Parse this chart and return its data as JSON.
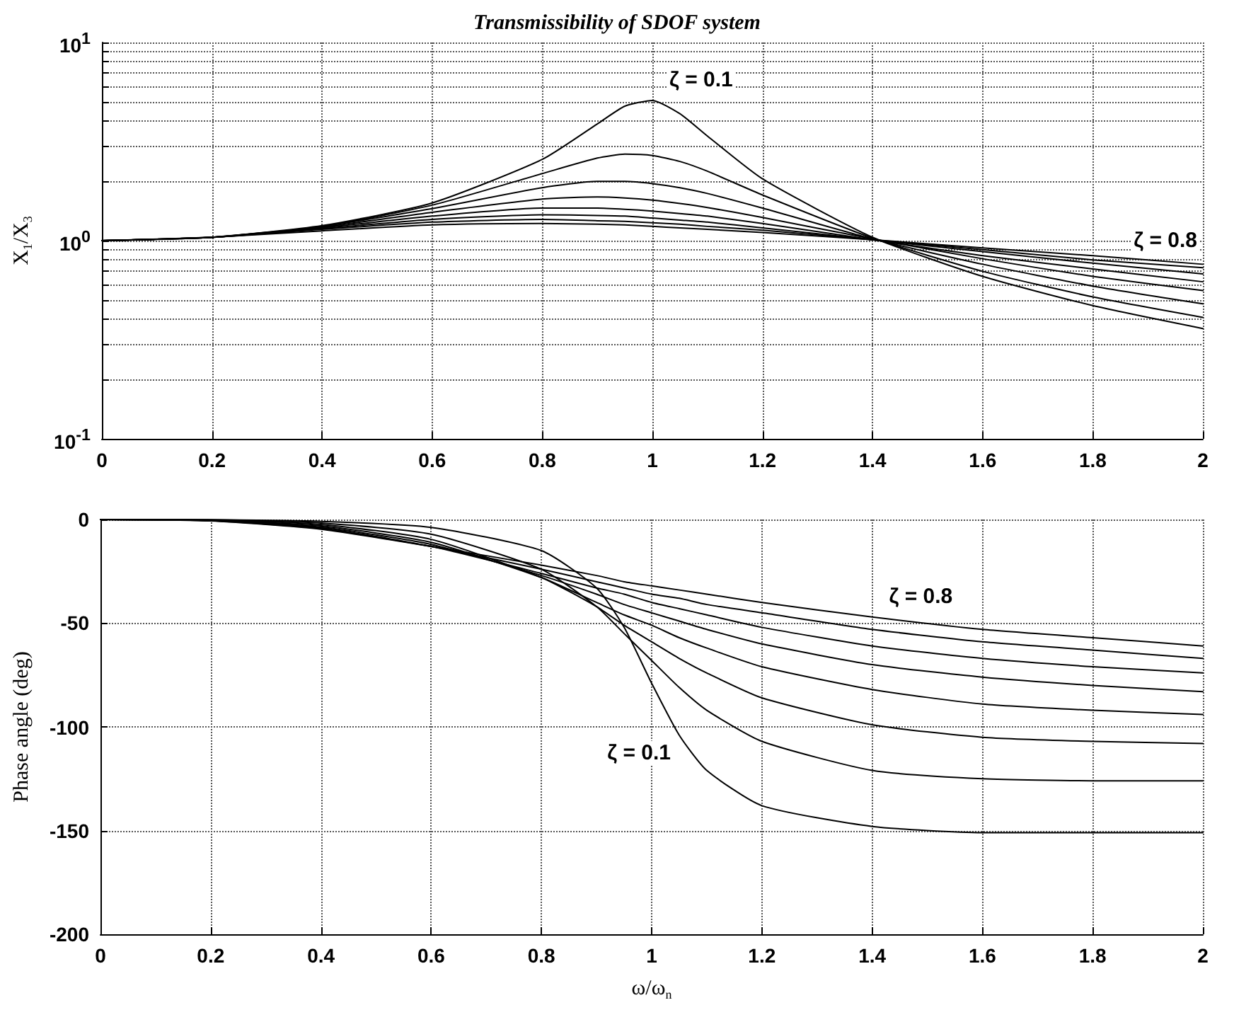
{
  "chart_data": [
    {
      "type": "line",
      "title": "Transmissibility of SDOF system",
      "ylabel": "X$_{1}$/X$_{3}$",
      "log": "y",
      "grid": true,
      "marker": "none",
      "line_style": "solid",
      "x": [
        0,
        0.2,
        0.4,
        0.6,
        0.8,
        0.9,
        0.95,
        1,
        1.05,
        1.1,
        1.2,
        1.4,
        1.6,
        1.8,
        2
      ],
      "xlim": [
        0,
        2
      ],
      "xticks": [
        0,
        0.2,
        0.4,
        0.6,
        0.8,
        1,
        1.2,
        1.4,
        1.6,
        1.8,
        2
      ],
      "ylim": [
        0.1,
        10
      ],
      "yticks": [
        {
          "value": 0.1,
          "label": "10$^{-1}$"
        },
        {
          "value": 0.2,
          "label": null
        },
        {
          "value": 0.3,
          "label": null
        },
        {
          "value": 0.4,
          "label": null
        },
        {
          "value": 0.5,
          "label": null
        },
        {
          "value": 0.6,
          "label": null
        },
        {
          "value": 0.7,
          "label": null
        },
        {
          "value": 0.8,
          "label": null
        },
        {
          "value": 0.9,
          "label": null
        },
        {
          "value": 1,
          "label": "10$^{0}$"
        },
        {
          "value": 2,
          "label": null
        },
        {
          "value": 3,
          "label": null
        },
        {
          "value": 4,
          "label": null
        },
        {
          "value": 5,
          "label": null
        },
        {
          "value": 6,
          "label": null
        },
        {
          "value": 7,
          "label": null
        },
        {
          "value": 8,
          "label": null
        },
        {
          "value": 9,
          "label": null
        },
        {
          "value": 10,
          "label": "10$^{1}$"
        }
      ],
      "annotations": [
        {
          "text": "ζ = 0.1",
          "x": 1,
          "y": 5.1
        },
        {
          "text": "ζ = 0.8",
          "x": 2,
          "y": 0.76
        }
      ],
      "series": [
        {
          "color": "#000000",
          "values": [
            1,
            1.04,
            1.19,
            1.55,
            2.57,
            3.88,
            4.77,
            5.1,
            4.37,
            3.37,
            2.05,
            1.04,
            0.66,
            0.47,
            0.36
          ]
        },
        {
          "color": "#000000",
          "values": [
            1,
            1.04,
            1.18,
            1.51,
            2.18,
            2.61,
            2.73,
            2.69,
            2.51,
            2.24,
            1.7,
            1.03,
            0.7,
            0.52,
            0.41
          ]
        },
        {
          "color": "#000000",
          "values": [
            1,
            1.04,
            1.18,
            1.45,
            1.85,
            1.99,
            1.99,
            1.94,
            1.85,
            1.73,
            1.46,
            1.02,
            0.76,
            0.59,
            0.48
          ]
        },
        {
          "color": "#000000",
          "values": [
            1,
            1.04,
            1.17,
            1.39,
            1.62,
            1.66,
            1.64,
            1.6,
            1.54,
            1.47,
            1.31,
            1.02,
            0.81,
            0.66,
            0.56
          ]
        },
        {
          "color": "#000000",
          "values": [
            1,
            1.04,
            1.16,
            1.33,
            1.46,
            1.46,
            1.44,
            1.41,
            1.37,
            1.33,
            1.22,
            1.01,
            0.84,
            0.72,
            0.62
          ]
        },
        {
          "color": "#000000",
          "values": [
            1,
            1.04,
            1.15,
            1.28,
            1.35,
            1.34,
            1.33,
            1.3,
            1.27,
            1.24,
            1.16,
            1.01,
            0.88,
            0.77,
            0.68
          ]
        },
        {
          "color": "#000000",
          "values": [
            1,
            1.04,
            1.14,
            1.24,
            1.28,
            1.26,
            1.25,
            1.23,
            1.21,
            1.18,
            1.13,
            1.01,
            0.9,
            0.8,
            0.73
          ]
        },
        {
          "color": "#000000",
          "values": [
            1,
            1.04,
            1.12,
            1.2,
            1.22,
            1.21,
            1.2,
            1.18,
            1.16,
            1.14,
            1.1,
            1.01,
            0.92,
            0.84,
            0.76
          ]
        }
      ]
    },
    {
      "type": "line",
      "xlabel": "ω/ω$_{n}$",
      "ylabel": "Phase angle (deg)",
      "grid": true,
      "marker": "none",
      "line_style": "solid",
      "x": [
        0,
        0.2,
        0.4,
        0.6,
        0.8,
        0.9,
        0.95,
        1,
        1.05,
        1.1,
        1.2,
        1.4,
        1.6,
        1.8,
        2
      ],
      "xlim": [
        0,
        2
      ],
      "xticks": [
        0,
        0.2,
        0.4,
        0.6,
        0.8,
        1,
        1.2,
        1.4,
        1.6,
        1.8,
        2
      ],
      "ylim": [
        -200,
        0
      ],
      "yticks": [
        -200,
        -150,
        -100,
        -50,
        0
      ],
      "annotations": [
        {
          "text": "ζ = 0.8",
          "x": 1.4,
          "y": -47
        },
        {
          "text": "ζ = 0.1",
          "x": 1.05,
          "y": -104
        }
      ],
      "series": [
        {
          "color": "#000000",
          "values": [
            0,
            -0.1,
            -0.9,
            -3.8,
            -15,
            -33,
            -52,
            -79,
            -104,
            -121,
            -138,
            -148,
            -151,
            -151,
            -151
          ]
        },
        {
          "color": "#000000",
          "values": [
            0,
            -0.2,
            -1.7,
            -7.1,
            -24,
            -42,
            -55,
            -68,
            -81,
            -92,
            -107,
            -121,
            -125,
            -126,
            -126
          ]
        },
        {
          "color": "#000000",
          "values": [
            0,
            -0.3,
            -2.4,
            -9.6,
            -28,
            -42,
            -51,
            -59,
            -67,
            -74,
            -86,
            -99,
            -105,
            -107,
            -108
          ]
        },
        {
          "color": "#000000",
          "values": [
            0,
            -0.4,
            -3.1,
            -11,
            -28,
            -40,
            -46,
            -51,
            -57,
            -62,
            -71,
            -82,
            -89,
            -92,
            -94
          ]
        },
        {
          "color": "#000000",
          "values": [
            0,
            -0.5,
            -3.7,
            -12,
            -27,
            -36,
            -41,
            -45,
            -49,
            -53,
            -60,
            -70,
            -76,
            -80,
            -83
          ]
        },
        {
          "color": "#000000",
          "values": [
            0,
            -0.5,
            -4.1,
            -13,
            -26,
            -33,
            -36,
            -40,
            -43,
            -46,
            -52,
            -61,
            -67,
            -71,
            -74
          ]
        },
        {
          "color": "#000000",
          "values": [
            0,
            -0.6,
            -4.4,
            -13,
            -24,
            -30,
            -33,
            -36,
            -38,
            -41,
            -45,
            -53,
            -59,
            -63,
            -67
          ]
        },
        {
          "color": "#000000",
          "values": [
            0,
            -0.7,
            -4.7,
            -13,
            -22,
            -27,
            -30,
            -32,
            -34,
            -36,
            -40,
            -47,
            -53,
            -57,
            -61
          ]
        }
      ]
    }
  ]
}
